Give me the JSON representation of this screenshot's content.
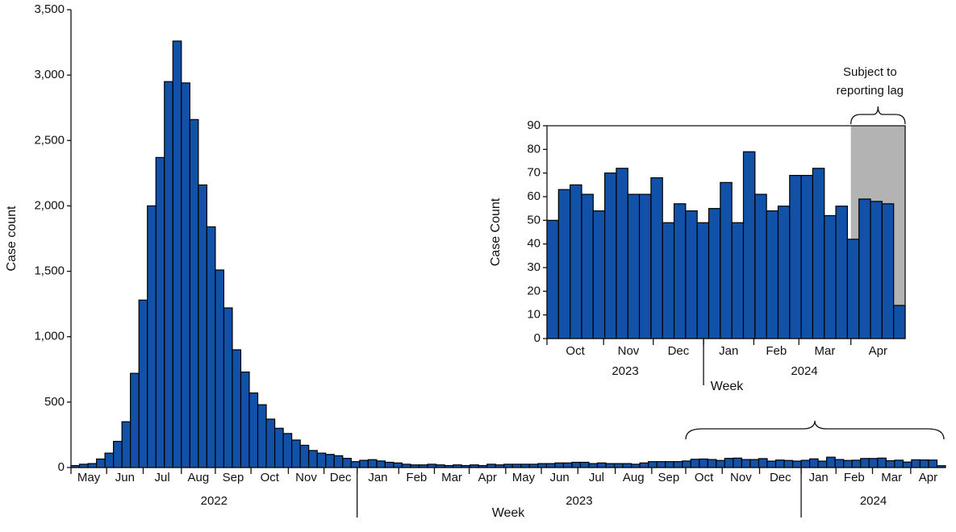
{
  "chart_data": [
    {
      "type": "bar",
      "y_label": "Case count",
      "x_label": "Week",
      "color": "#1151a8",
      "values": [
        15,
        25,
        30,
        65,
        110,
        200,
        350,
        720,
        1280,
        2000,
        2370,
        2950,
        3260,
        2940,
        2660,
        2160,
        1840,
        1510,
        1220,
        900,
        730,
        570,
        480,
        370,
        300,
        260,
        210,
        170,
        130,
        110,
        100,
        90,
        70,
        45,
        55,
        60,
        50,
        40,
        35,
        25,
        20,
        20,
        25,
        20,
        15,
        20,
        15,
        20,
        15,
        25,
        20,
        25,
        25,
        25,
        25,
        30,
        30,
        35,
        35,
        40,
        40,
        30,
        35,
        30,
        30,
        30,
        25,
        35,
        45,
        45,
        45,
        45,
        50,
        63,
        65,
        61,
        54,
        70,
        72,
        61,
        61,
        68,
        49,
        57,
        54,
        49,
        55,
        66,
        49,
        79,
        61,
        54,
        56,
        69,
        69,
        72,
        52,
        56,
        42,
        59,
        58,
        57,
        14
      ],
      "xlim": [
        0,
        103
      ],
      "ylim": [
        0,
        3500
      ],
      "yticks": [
        0,
        500,
        {
          "value": 1000,
          "label": "1,000"
        },
        {
          "value": 1500,
          "label": "1,500"
        },
        {
          "value": 2000,
          "label": "2,000"
        },
        {
          "value": 2500,
          "label": "2,500"
        },
        {
          "value": 3000,
          "label": "3,000"
        },
        {
          "value": 3500,
          "label": "3,500"
        }
      ],
      "xticks": [
        {
          "value": 0,
          "label": "May"
        },
        {
          "value": 4.2,
          "label": "Jun"
        },
        {
          "value": 8.5,
          "label": "Jul"
        },
        {
          "value": 13,
          "label": "Aug"
        },
        {
          "value": 17,
          "label": "Sep"
        },
        {
          "value": 21.2,
          "label": "Oct"
        },
        {
          "value": 25.6,
          "label": "Nov"
        },
        {
          "value": 29.8,
          "label": "Dec"
        },
        {
          "value": 33.7,
          "label": "Jan"
        },
        {
          "value": 38.6,
          "label": "Feb"
        },
        {
          "value": 42.8,
          "label": "Mar"
        },
        {
          "value": 46.9,
          "label": "Apr"
        },
        {
          "value": 51.2,
          "label": "May"
        },
        {
          "value": 55.4,
          "label": "Jun"
        },
        {
          "value": 59.7,
          "label": "Jul"
        },
        {
          "value": 64.1,
          "label": "Aug"
        },
        {
          "value": 68.4,
          "label": "Sep"
        },
        {
          "value": 72.4,
          "label": "Oct"
        },
        {
          "value": 76.7,
          "label": "Nov"
        },
        {
          "value": 81.1,
          "label": "Dec"
        },
        {
          "value": 86,
          "label": "Jan"
        },
        {
          "value": 90.1,
          "label": "Feb"
        },
        {
          "value": 94.4,
          "label": "Mar"
        },
        {
          "value": 98.9,
          "label": "Apr"
        }
      ],
      "year_ticks": [
        {
          "value": 0,
          "label": "2022"
        },
        {
          "value": 33.7,
          "label": "2023"
        },
        {
          "value": 86,
          "label": "2024"
        }
      ]
    },
    {
      "type": "bar",
      "y_label": "Case Count",
      "x_label": "Week",
      "color": "#1151a8",
      "shade_color": "#b3b3b3",
      "annotation": [
        "Subject to",
        "reporting lag"
      ],
      "values": [
        50,
        63,
        65,
        61,
        54,
        70,
        72,
        61,
        61,
        68,
        49,
        57,
        54,
        49,
        55,
        66,
        49,
        79,
        61,
        54,
        56,
        69,
        69,
        72,
        52,
        56,
        42,
        59,
        58,
        57,
        14
      ],
      "xlim": [
        0,
        31
      ],
      "ylim": [
        0,
        90
      ],
      "yticks": [
        0,
        10,
        20,
        30,
        40,
        50,
        60,
        70,
        80,
        90
      ],
      "xticks": [
        {
          "value": 0,
          "label": "Oct"
        },
        {
          "value": 4.9,
          "label": "Nov"
        },
        {
          "value": 9.2,
          "label": "Dec"
        },
        {
          "value": 13.55,
          "label": "Jan"
        },
        {
          "value": 17.9,
          "label": "Feb"
        },
        {
          "value": 21.8,
          "label": "Mar"
        },
        {
          "value": 26.3,
          "label": "Apr"
        }
      ],
      "year_ticks": [
        {
          "value": 0,
          "label": "2023"
        },
        {
          "value": 13.55,
          "label": "2024"
        }
      ]
    }
  ]
}
